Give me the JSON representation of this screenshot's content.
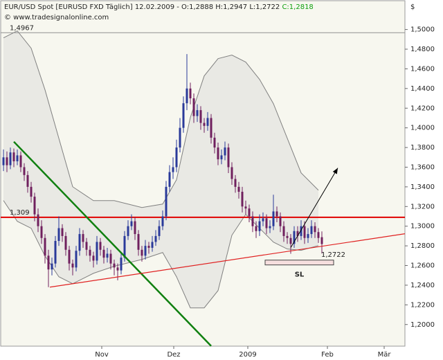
{
  "header": {
    "title": "EUR/USD Spot [EURUSD FXD  Täglich] 12.02.2009 - O:1,2888 H:1,2947 L:1,2722 ",
    "close": "C:1,2818",
    "source": "© www.tradesignalonline.com",
    "currency": "$"
  },
  "chart_data": {
    "type": "candlestick",
    "up_color": "#2a3a9a",
    "down_color": "#70205e",
    "xlim": [
      -1,
      116
    ],
    "ylim": [
      1.178,
      1.53
    ],
    "xticks": [
      {
        "value": 28.4,
        "label": "Nov"
      },
      {
        "value": 49.2,
        "label": "Dez"
      },
      {
        "value": 70.6,
        "label": "2009"
      },
      {
        "value": 93.6,
        "label": "Feb"
      },
      {
        "value": 110,
        "label": "Mär"
      }
    ],
    "yticks": [
      {
        "value": 1.2,
        "label": "1,2000"
      },
      {
        "value": 1.22,
        "label": "1,2200"
      },
      {
        "value": 1.24,
        "label": "1,2400"
      },
      {
        "value": 1.26,
        "label": "1,2600"
      },
      {
        "value": 1.28,
        "label": "1,2800"
      },
      {
        "value": 1.3,
        "label": "1,3000"
      },
      {
        "value": 1.32,
        "label": "1,3200"
      },
      {
        "value": 1.34,
        "label": "1,3400"
      },
      {
        "value": 1.36,
        "label": "1,3600"
      },
      {
        "value": 1.38,
        "label": "1,3800"
      },
      {
        "value": 1.4,
        "label": "1,4000"
      },
      {
        "value": 1.42,
        "label": "1,4200"
      },
      {
        "value": 1.44,
        "label": "1,4400"
      },
      {
        "value": 1.46,
        "label": "1,4600"
      },
      {
        "value": 1.48,
        "label": "1,4800"
      },
      {
        "value": 1.5,
        "label": "1,5000"
      }
    ],
    "ohlc": [
      [
        1.362,
        1.378,
        1.356,
        1.37
      ],
      [
        1.37,
        1.376,
        1.355,
        1.362
      ],
      [
        1.362,
        1.38,
        1.358,
        1.375
      ],
      [
        1.375,
        1.379,
        1.36,
        1.366
      ],
      [
        1.366,
        1.378,
        1.362,
        1.372
      ],
      [
        1.372,
        1.376,
        1.355,
        1.36
      ],
      [
        1.36,
        1.364,
        1.346,
        1.352
      ],
      [
        1.352,
        1.356,
        1.334,
        1.34
      ],
      [
        1.34,
        1.345,
        1.324,
        1.33
      ],
      [
        1.33,
        1.334,
        1.305,
        1.312
      ],
      [
        1.312,
        1.318,
        1.294,
        1.3
      ],
      [
        1.3,
        1.306,
        1.282,
        1.288
      ],
      [
        1.288,
        1.292,
        1.262,
        1.27
      ],
      [
        1.27,
        1.276,
        1.238,
        1.256
      ],
      [
        1.256,
        1.268,
        1.25,
        1.262
      ],
      [
        1.262,
        1.29,
        1.258,
        1.285
      ],
      [
        1.285,
        1.31,
        1.28,
        1.298
      ],
      [
        1.298,
        1.302,
        1.284,
        1.29
      ],
      [
        1.29,
        1.294,
        1.27,
        1.276
      ],
      [
        1.276,
        1.28,
        1.255,
        1.262
      ],
      [
        1.262,
        1.266,
        1.25,
        1.258
      ],
      [
        1.258,
        1.28,
        1.254,
        1.275
      ],
      [
        1.275,
        1.298,
        1.27,
        1.292
      ],
      [
        1.292,
        1.296,
        1.278,
        1.284
      ],
      [
        1.284,
        1.288,
        1.27,
        1.276
      ],
      [
        1.276,
        1.28,
        1.264,
        1.27
      ],
      [
        1.27,
        1.274,
        1.258,
        1.265
      ],
      [
        1.265,
        1.29,
        1.261,
        1.284
      ],
      [
        1.284,
        1.288,
        1.27,
        1.276
      ],
      [
        1.276,
        1.28,
        1.262,
        1.268
      ],
      [
        1.268,
        1.278,
        1.263,
        1.272
      ],
      [
        1.272,
        1.276,
        1.256,
        1.262
      ],
      [
        1.262,
        1.266,
        1.25,
        1.258
      ],
      [
        1.258,
        1.262,
        1.245,
        1.255
      ],
      [
        1.255,
        1.274,
        1.251,
        1.268
      ],
      [
        1.268,
        1.295,
        1.264,
        1.29
      ],
      [
        1.29,
        1.306,
        1.286,
        1.3
      ],
      [
        1.3,
        1.312,
        1.296,
        1.305
      ],
      [
        1.305,
        1.309,
        1.286,
        1.292
      ],
      [
        1.292,
        1.296,
        1.27,
        1.276
      ],
      [
        1.276,
        1.28,
        1.264,
        1.27
      ],
      [
        1.27,
        1.286,
        1.266,
        1.28
      ],
      [
        1.28,
        1.284,
        1.272,
        1.278
      ],
      [
        1.278,
        1.29,
        1.274,
        1.284
      ],
      [
        1.284,
        1.296,
        1.28,
        1.29
      ],
      [
        1.29,
        1.306,
        1.286,
        1.3
      ],
      [
        1.3,
        1.316,
        1.296,
        1.31
      ],
      [
        1.31,
        1.346,
        1.306,
        1.34
      ],
      [
        1.34,
        1.362,
        1.335,
        1.355
      ],
      [
        1.355,
        1.37,
        1.348,
        1.36
      ],
      [
        1.36,
        1.388,
        1.355,
        1.38
      ],
      [
        1.38,
        1.41,
        1.375,
        1.4
      ],
      [
        1.4,
        1.432,
        1.395,
        1.425
      ],
      [
        1.425,
        1.475,
        1.418,
        1.44
      ],
      [
        1.44,
        1.446,
        1.424,
        1.43
      ],
      [
        1.43,
        1.435,
        1.405,
        1.412
      ],
      [
        1.412,
        1.424,
        1.406,
        1.418
      ],
      [
        1.418,
        1.422,
        1.398,
        1.405
      ],
      [
        1.405,
        1.41,
        1.395,
        1.402
      ],
      [
        1.402,
        1.416,
        1.397,
        1.41
      ],
      [
        1.41,
        1.414,
        1.384,
        1.39
      ],
      [
        1.39,
        1.395,
        1.374,
        1.38
      ],
      [
        1.38,
        1.385,
        1.362,
        1.368
      ],
      [
        1.368,
        1.378,
        1.363,
        1.372
      ],
      [
        1.372,
        1.386,
        1.367,
        1.38
      ],
      [
        1.38,
        1.384,
        1.354,
        1.36
      ],
      [
        1.36,
        1.365,
        1.342,
        1.348
      ],
      [
        1.348,
        1.352,
        1.334,
        1.34
      ],
      [
        1.34,
        1.345,
        1.328,
        1.335
      ],
      [
        1.335,
        1.34,
        1.314,
        1.32
      ],
      [
        1.32,
        1.326,
        1.312,
        1.318
      ],
      [
        1.318,
        1.322,
        1.304,
        1.31
      ],
      [
        1.31,
        1.315,
        1.294,
        1.3
      ],
      [
        1.3,
        1.305,
        1.288,
        1.295
      ],
      [
        1.295,
        1.312,
        1.29,
        1.305
      ],
      [
        1.305,
        1.314,
        1.3,
        1.308
      ],
      [
        1.308,
        1.312,
        1.292,
        1.298
      ],
      [
        1.298,
        1.306,
        1.293,
        1.3
      ],
      [
        1.3,
        1.332,
        1.296,
        1.315
      ],
      [
        1.315,
        1.32,
        1.304,
        1.31
      ],
      [
        1.31,
        1.314,
        1.294,
        1.3
      ],
      [
        1.3,
        1.305,
        1.284,
        1.29
      ],
      [
        1.29,
        1.294,
        1.282,
        1.288
      ],
      [
        1.288,
        1.292,
        1.272,
        1.282
      ],
      [
        1.282,
        1.3,
        1.278,
        1.295
      ],
      [
        1.295,
        1.3,
        1.284,
        1.29
      ],
      [
        1.29,
        1.306,
        1.286,
        1.3
      ],
      [
        1.3,
        1.305,
        1.282,
        1.288
      ],
      [
        1.288,
        1.298,
        1.283,
        1.292
      ],
      [
        1.292,
        1.306,
        1.288,
        1.3
      ],
      [
        1.3,
        1.304,
        1.288,
        1.294
      ],
      [
        1.294,
        1.298,
        1.283,
        1.288
      ],
      [
        1.2888,
        1.2947,
        1.2722,
        1.2818
      ]
    ],
    "bands": {
      "color": "#808080",
      "fill": "#e9e9e4",
      "x": [
        0,
        4,
        8,
        12,
        16,
        20,
        26,
        32,
        40,
        46,
        50,
        54,
        58,
        62,
        66,
        70,
        74,
        78,
        82,
        86,
        91
      ],
      "upper": [
        1.4915,
        1.4986,
        1.481,
        1.4387,
        1.3894,
        1.3401,
        1.326,
        1.326,
        1.319,
        1.3225,
        1.3472,
        1.4106,
        1.4528,
        1.4704,
        1.474,
        1.4669,
        1.4493,
        1.4246,
        1.3894,
        1.3542,
        1.3366
      ],
      "lower": [
        1.3261,
        1.3049,
        1.2979,
        1.2697,
        1.2486,
        1.2415,
        1.2521,
        1.2592,
        1.2662,
        1.2732,
        1.2486,
        1.2169,
        1.2169,
        1.2345,
        1.2908,
        1.312,
        1.2979,
        1.2838,
        1.2768,
        1.2754,
        1.2803
      ]
    },
    "hlines": [
      {
        "value": 1.309,
        "label": "1,309",
        "color": "#e00000"
      },
      {
        "value": 1.4967,
        "label": "1,4967",
        "color": "#909090"
      }
    ],
    "lines": [
      {
        "color": "#108010",
        "x": [
          3,
          60
        ],
        "y": [
          1.3859,
          1.1782
        ]
      },
      {
        "color": "#e02020",
        "x": [
          13.4,
          116
        ],
        "y": [
          1.238,
          1.2923
        ]
      }
    ],
    "arrow": {
      "color": "#000000",
      "x": [
        83,
        96.6
      ],
      "y": [
        1.2782,
        1.3592
      ]
    },
    "low_label": {
      "text": "1,2722",
      "value": 1.2722
    },
    "sl": {
      "label": "SL",
      "x": [
        75.6,
        95.4
      ],
      "top": 1.2655,
      "bottom": 1.2606
    }
  }
}
